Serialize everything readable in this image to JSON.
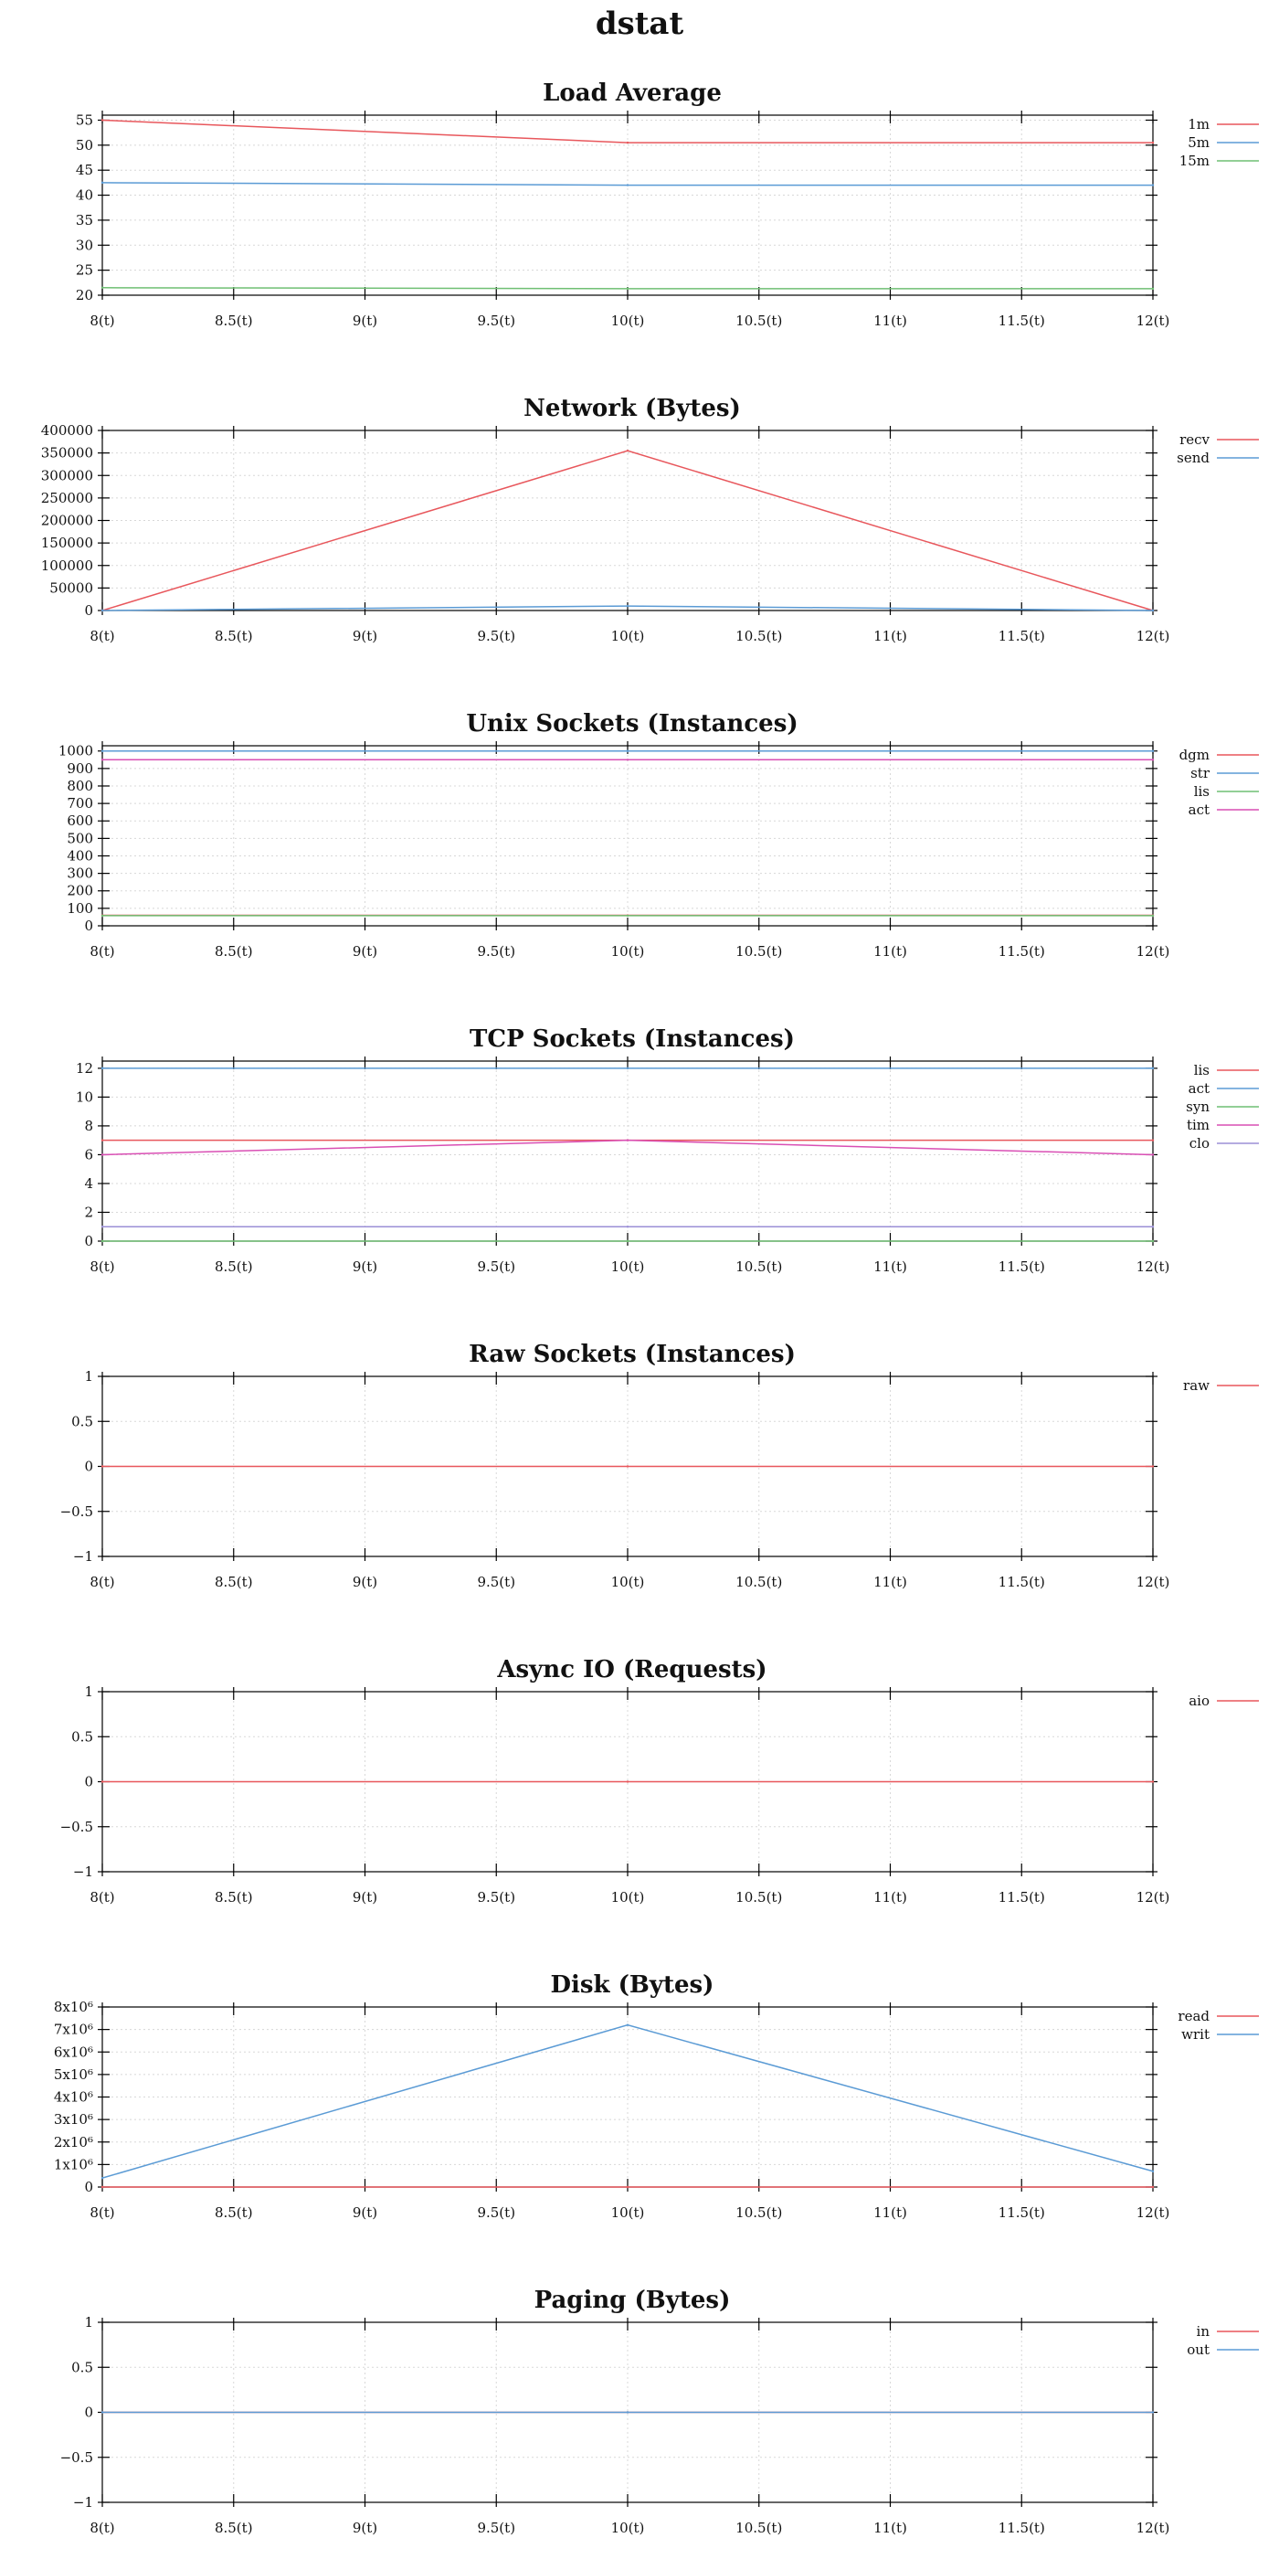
{
  "page": {
    "title": "dstat"
  },
  "colors": {
    "red": "#e8575c",
    "blue": "#5b9bd5",
    "green": "#6fbf73",
    "magenta": "#d94fb4",
    "purple": "#9b8fd6"
  },
  "chart_data": [
    {
      "type": "line",
      "title": "Load Average",
      "x": [
        8,
        10,
        12
      ],
      "xticks": [
        "8(t)",
        "8.5(t)",
        "9(t)",
        "9.5(t)",
        "10(t)",
        "10.5(t)",
        "11(t)",
        "11.5(t)",
        "12(t)"
      ],
      "xlim": [
        8,
        12
      ],
      "ylim": [
        20,
        56
      ],
      "yticks": [
        20,
        25,
        30,
        35,
        40,
        45,
        50,
        55
      ],
      "ytick_labels": [
        "20",
        "25",
        "30",
        "35",
        "40",
        "45",
        "50",
        "55"
      ],
      "grid": true,
      "legend": "right",
      "series": [
        {
          "name": "1m",
          "color": "#e8575c",
          "values": [
            55,
            50.5,
            50.5
          ]
        },
        {
          "name": "5m",
          "color": "#5b9bd5",
          "values": [
            42.5,
            42,
            42
          ]
        },
        {
          "name": "15m",
          "color": "#6fbf73",
          "values": [
            21.5,
            21.3,
            21.3
          ]
        }
      ]
    },
    {
      "type": "line",
      "title": "Network (Bytes)",
      "x": [
        8,
        10,
        12
      ],
      "xticks": [
        "8(t)",
        "8.5(t)",
        "9(t)",
        "9.5(t)",
        "10(t)",
        "10.5(t)",
        "11(t)",
        "11.5(t)",
        "12(t)"
      ],
      "xlim": [
        8,
        12
      ],
      "ylim": [
        0,
        400000
      ],
      "yticks": [
        0,
        50000,
        100000,
        150000,
        200000,
        250000,
        300000,
        350000,
        400000
      ],
      "ytick_labels": [
        "0",
        "50000",
        "100000",
        "150000",
        "200000",
        "250000",
        "300000",
        "350000",
        "400000"
      ],
      "grid": true,
      "legend": "right",
      "series": [
        {
          "name": "recv",
          "color": "#e8575c",
          "values": [
            0,
            355000,
            0
          ]
        },
        {
          "name": "send",
          "color": "#5b9bd5",
          "values": [
            0,
            10000,
            0
          ]
        }
      ]
    },
    {
      "type": "line",
      "title": "Unix Sockets (Instances)",
      "x": [
        8,
        10,
        12
      ],
      "xticks": [
        "8(t)",
        "8.5(t)",
        "9(t)",
        "9.5(t)",
        "10(t)",
        "10.5(t)",
        "11(t)",
        "11.5(t)",
        "12(t)"
      ],
      "xlim": [
        8,
        12
      ],
      "ylim": [
        0,
        1030
      ],
      "yticks": [
        0,
        100,
        200,
        300,
        400,
        500,
        600,
        700,
        800,
        900,
        1000
      ],
      "ytick_labels": [
        "0",
        "100",
        "200",
        "300",
        "400",
        "500",
        "600",
        "700",
        "800",
        "900",
        "1000"
      ],
      "grid": true,
      "legend": "right",
      "series": [
        {
          "name": "dgm",
          "color": "#e8575c",
          "values": [
            60,
            60,
            60
          ]
        },
        {
          "name": "str",
          "color": "#5b9bd5",
          "values": [
            1000,
            1000,
            1000
          ]
        },
        {
          "name": "lis",
          "color": "#6fbf73",
          "values": [
            58,
            58,
            58
          ]
        },
        {
          "name": "act",
          "color": "#d94fb4",
          "values": [
            950,
            950,
            950
          ]
        }
      ]
    },
    {
      "type": "line",
      "title": "TCP Sockets (Instances)",
      "x": [
        8,
        10,
        12
      ],
      "xticks": [
        "8(t)",
        "8.5(t)",
        "9(t)",
        "9.5(t)",
        "10(t)",
        "10.5(t)",
        "11(t)",
        "11.5(t)",
        "12(t)"
      ],
      "xlim": [
        8,
        12
      ],
      "ylim": [
        0,
        12.5
      ],
      "yticks": [
        0,
        2,
        4,
        6,
        8,
        10,
        12
      ],
      "ytick_labels": [
        "0",
        "2",
        "4",
        "6",
        "8",
        "10",
        "12"
      ],
      "grid": true,
      "legend": "right",
      "series": [
        {
          "name": "lis",
          "color": "#e8575c",
          "values": [
            7,
            7,
            7
          ]
        },
        {
          "name": "act",
          "color": "#5b9bd5",
          "values": [
            12,
            12,
            12
          ]
        },
        {
          "name": "syn",
          "color": "#6fbf73",
          "values": [
            0,
            0,
            0
          ]
        },
        {
          "name": "tim",
          "color": "#d94fb4",
          "values": [
            6,
            7,
            6
          ]
        },
        {
          "name": "clo",
          "color": "#9b8fd6",
          "values": [
            1,
            1,
            1
          ]
        }
      ]
    },
    {
      "type": "line",
      "title": "Raw Sockets (Instances)",
      "x": [
        8,
        10,
        12
      ],
      "xticks": [
        "8(t)",
        "8.5(t)",
        "9(t)",
        "9.5(t)",
        "10(t)",
        "10.5(t)",
        "11(t)",
        "11.5(t)",
        "12(t)"
      ],
      "xlim": [
        8,
        12
      ],
      "ylim": [
        -1,
        1
      ],
      "yticks": [
        -1,
        -0.5,
        0,
        0.5,
        1
      ],
      "ytick_labels": [
        "−1",
        "−0.5",
        "0",
        "0.5",
        "1"
      ],
      "grid": true,
      "legend": "right",
      "series": [
        {
          "name": "raw",
          "color": "#e8575c",
          "values": [
            0,
            0,
            0
          ]
        }
      ]
    },
    {
      "type": "line",
      "title": "Async IO (Requests)",
      "x": [
        8,
        10,
        12
      ],
      "xticks": [
        "8(t)",
        "8.5(t)",
        "9(t)",
        "9.5(t)",
        "10(t)",
        "10.5(t)",
        "11(t)",
        "11.5(t)",
        "12(t)"
      ],
      "xlim": [
        8,
        12
      ],
      "ylim": [
        -1,
        1
      ],
      "yticks": [
        -1,
        -0.5,
        0,
        0.5,
        1
      ],
      "ytick_labels": [
        "−1",
        "−0.5",
        "0",
        "0.5",
        "1"
      ],
      "grid": true,
      "legend": "right",
      "series": [
        {
          "name": "aio",
          "color": "#e8575c",
          "values": [
            0,
            0,
            0
          ]
        }
      ]
    },
    {
      "type": "line",
      "title": "Disk (Bytes)",
      "x": [
        8,
        10,
        12
      ],
      "xticks": [
        "8(t)",
        "8.5(t)",
        "9(t)",
        "9.5(t)",
        "10(t)",
        "10.5(t)",
        "11(t)",
        "11.5(t)",
        "12(t)"
      ],
      "xlim": [
        8,
        12
      ],
      "ylim": [
        0,
        8000000
      ],
      "yticks": [
        0,
        1000000,
        2000000,
        3000000,
        4000000,
        5000000,
        6000000,
        7000000,
        8000000
      ],
      "ytick_labels": [
        "0",
        "1x10⁶",
        "2x10⁶",
        "3x10⁶",
        "4x10⁶",
        "5x10⁶",
        "6x10⁶",
        "7x10⁶",
        "8x10⁶"
      ],
      "grid": true,
      "legend": "right",
      "series": [
        {
          "name": "read",
          "color": "#e8575c",
          "values": [
            0,
            0,
            0
          ]
        },
        {
          "name": "writ",
          "color": "#5b9bd5",
          "values": [
            400000,
            7200000,
            700000
          ]
        }
      ]
    },
    {
      "type": "line",
      "title": "Paging (Bytes)",
      "x": [
        8,
        10,
        12
      ],
      "xticks": [
        "8(t)",
        "8.5(t)",
        "9(t)",
        "9.5(t)",
        "10(t)",
        "10.5(t)",
        "11(t)",
        "11.5(t)",
        "12(t)"
      ],
      "xlim": [
        8,
        12
      ],
      "ylim": [
        -1,
        1
      ],
      "yticks": [
        -1,
        -0.5,
        0,
        0.5,
        1
      ],
      "ytick_labels": [
        "−1",
        "−0.5",
        "0",
        "0.5",
        "1"
      ],
      "grid": true,
      "legend": "right",
      "series": [
        {
          "name": "in",
          "color": "#e8575c",
          "values": [
            0,
            0,
            0
          ]
        },
        {
          "name": "out",
          "color": "#5b9bd5",
          "values": [
            0,
            0,
            0
          ]
        }
      ]
    }
  ]
}
